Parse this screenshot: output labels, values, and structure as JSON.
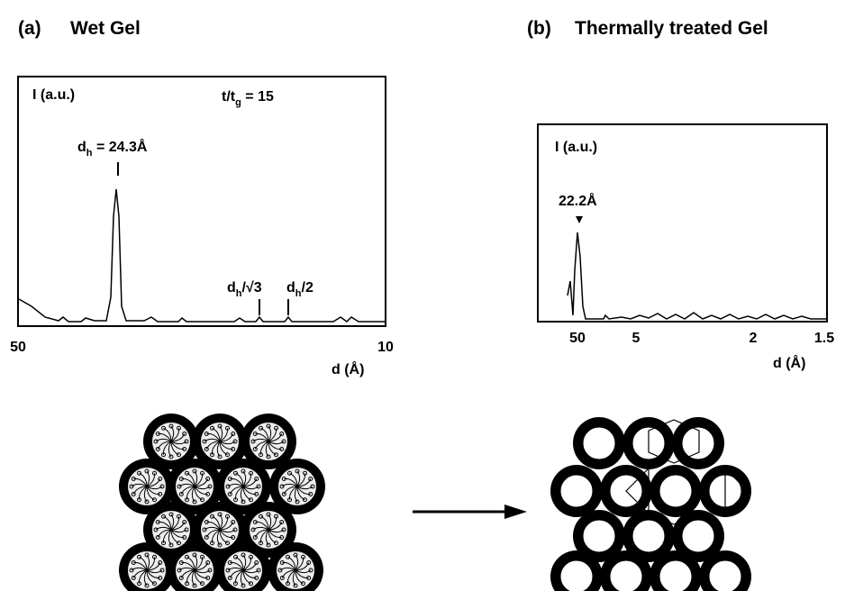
{
  "panel_a": {
    "label": "(a)",
    "title": "Wet Gel",
    "y_label": "I (a.u.)",
    "ratio": {
      "main": "t/t",
      "sub": "g",
      "rest": " = 15"
    },
    "peak": {
      "main": "d",
      "sub": "h",
      "rest": " = 24.3Å"
    },
    "second": {
      "main": "d",
      "sub": "h",
      "rest": "/√3"
    },
    "third": {
      "main": "d",
      "sub": "h",
      "rest": "/2"
    },
    "x_ticks": [
      "50",
      "10"
    ],
    "x_label": "d (Å)"
  },
  "panel_b": {
    "label": "(b)",
    "title": "Thermally treated Gel",
    "y_label": "I (a.u.)",
    "peak": "22.2Å",
    "x_ticks": [
      "50",
      "5",
      "2",
      "1.5"
    ],
    "x_label": "d (Å)"
  }
}
